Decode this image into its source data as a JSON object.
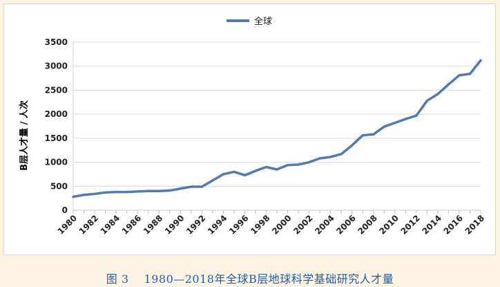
{
  "caption": {
    "label": "图 3",
    "text": "1980—2018年全球B层地球科学基础研究人才量"
  },
  "chart_data": {
    "type": "line",
    "title": "",
    "xlabel": "",
    "ylabel": "B层人才量 / 人次",
    "ylim": [
      0,
      3500
    ],
    "yticks": [
      "0",
      "500",
      "1000",
      "1500",
      "2000",
      "2500",
      "3000",
      "3500"
    ],
    "xticks": [
      "1980",
      "1982",
      "1984",
      "1986",
      "1988",
      "1990",
      "1992",
      "1994",
      "1996",
      "1998",
      "2000",
      "2002",
      "2004",
      "2006",
      "2008",
      "2010",
      "2012",
      "2014",
      "2016",
      "2018"
    ],
    "grid": true,
    "legend_position": "top",
    "x": [
      1980,
      1981,
      1982,
      1983,
      1984,
      1985,
      1986,
      1987,
      1988,
      1989,
      1990,
      1991,
      1992,
      1993,
      1994,
      1995,
      1996,
      1997,
      1998,
      1999,
      2000,
      2001,
      2002,
      2003,
      2004,
      2005,
      2006,
      2007,
      2008,
      2009,
      2010,
      2011,
      2012,
      2013,
      2014,
      2015,
      2016,
      2017,
      2018
    ],
    "series": [
      {
        "name": "全球",
        "color": "#4f7bb0",
        "values": [
          280,
          320,
          340,
          370,
          380,
          380,
          390,
          400,
          400,
          410,
          450,
          490,
          490,
          620,
          750,
          800,
          730,
          820,
          900,
          850,
          940,
          950,
          1000,
          1080,
          1110,
          1170,
          1350,
          1560,
          1580,
          1740,
          1820,
          1900,
          1970,
          2280,
          2420,
          2620,
          2810,
          2840,
          3120
        ]
      }
    ]
  }
}
